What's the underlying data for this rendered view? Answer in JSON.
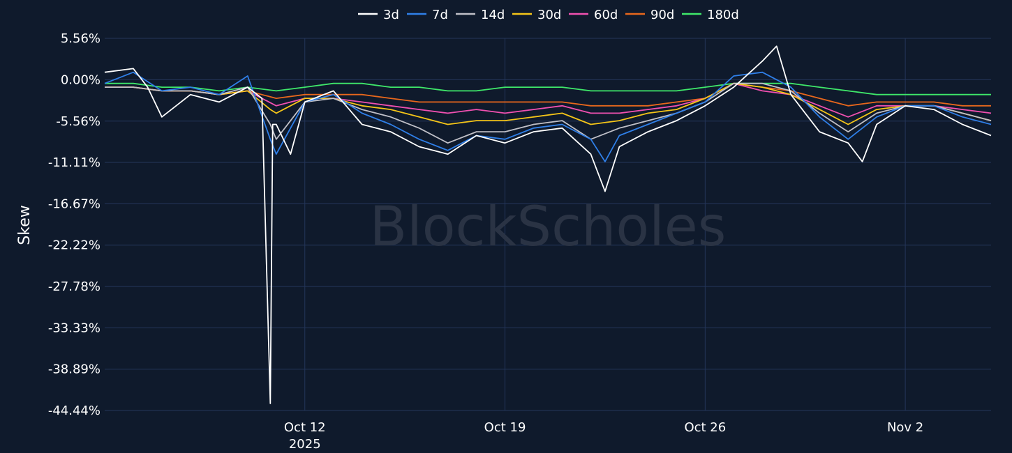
{
  "chart_data": {
    "type": "line",
    "title": "",
    "xlabel": "",
    "ylabel": "Skew",
    "watermark": "BlockScholes",
    "legend_position": "top-center",
    "grid": true,
    "ylim": [
      -44.44,
      5.56
    ],
    "xlim": [
      "2025-10-05",
      "2025-11-05"
    ],
    "y_ticks": [
      5.56,
      0.0,
      -5.56,
      -11.11,
      -16.67,
      -22.22,
      -27.78,
      -33.33,
      -38.89,
      -44.44
    ],
    "y_tick_labels": [
      "5.56%",
      "0.00%",
      "-5.56%",
      "-11.11%",
      "-16.67%",
      "-22.22%",
      "-27.78%",
      "-33.33%",
      "-38.89%",
      "-44.44%"
    ],
    "x_ticks": [
      {
        "date": "2025-10-12",
        "label": "Oct 12",
        "sublabel": "2025"
      },
      {
        "date": "2025-10-19",
        "label": "Oct 19",
        "sublabel": ""
      },
      {
        "date": "2025-10-26",
        "label": "Oct 26",
        "sublabel": ""
      },
      {
        "date": "2025-11-02",
        "label": "Nov 2",
        "sublabel": ""
      }
    ],
    "series": [
      {
        "name": "3d",
        "color": "#ffffff",
        "x": [
          "2025-10-05",
          "2025-10-06",
          "2025-10-06T12:00",
          "2025-10-07",
          "2025-10-08",
          "2025-10-09",
          "2025-10-10",
          "2025-10-10T12:00",
          "2025-10-10T19:00",
          "2025-10-10T21:00",
          "2025-10-11",
          "2025-10-11T12:00",
          "2025-10-12",
          "2025-10-13",
          "2025-10-14",
          "2025-10-15",
          "2025-10-16",
          "2025-10-17",
          "2025-10-18",
          "2025-10-19",
          "2025-10-20",
          "2025-10-21",
          "2025-10-22",
          "2025-10-22T12:00",
          "2025-10-23",
          "2025-10-24",
          "2025-10-25",
          "2025-10-26",
          "2025-10-27",
          "2025-10-28",
          "2025-10-28T12:00",
          "2025-10-29",
          "2025-10-30",
          "2025-10-31",
          "2025-10-31T12:00",
          "2025-11-01",
          "2025-11-02",
          "2025-11-03",
          "2025-11-04",
          "2025-11-05"
        ],
        "y": [
          1.0,
          1.5,
          -1.0,
          -5.0,
          -2.0,
          -3.0,
          -1.0,
          -2.5,
          -43.5,
          -6.0,
          -6.0,
          -10.0,
          -3.0,
          -1.5,
          -6.0,
          -7.0,
          -9.0,
          -10.0,
          -7.5,
          -8.5,
          -7.0,
          -6.5,
          -10.0,
          -15.0,
          -9.0,
          -7.0,
          -5.5,
          -3.5,
          -1.0,
          2.5,
          4.5,
          -2.0,
          -7.0,
          -8.5,
          -11.0,
          -6.0,
          -3.5,
          -4.0,
          -6.0,
          -7.5
        ]
      },
      {
        "name": "7d",
        "color": "#2f7fe8",
        "x": [
          "2025-10-05",
          "2025-10-06",
          "2025-10-07",
          "2025-10-08",
          "2025-10-09",
          "2025-10-10",
          "2025-10-10T19:00",
          "2025-10-11",
          "2025-10-12",
          "2025-10-13",
          "2025-10-14",
          "2025-10-15",
          "2025-10-16",
          "2025-10-17",
          "2025-10-18",
          "2025-10-19",
          "2025-10-20",
          "2025-10-21",
          "2025-10-22",
          "2025-10-22T12:00",
          "2025-10-23",
          "2025-10-24",
          "2025-10-25",
          "2025-10-26",
          "2025-10-27",
          "2025-10-28",
          "2025-10-29",
          "2025-10-30",
          "2025-10-31",
          "2025-11-01",
          "2025-11-02",
          "2025-11-03",
          "2025-11-04",
          "2025-11-05"
        ],
        "y": [
          -0.5,
          1.0,
          -1.5,
          -1.0,
          -2.0,
          0.5,
          -8.0,
          -10.0,
          -3.0,
          -2.0,
          -4.5,
          -6.0,
          -8.0,
          -9.5,
          -7.5,
          -8.0,
          -6.5,
          -6.0,
          -8.0,
          -11.0,
          -7.5,
          -6.0,
          -4.5,
          -3.0,
          0.5,
          1.0,
          -1.0,
          -5.0,
          -8.0,
          -5.0,
          -3.5,
          -3.5,
          -5.0,
          -6.0
        ]
      },
      {
        "name": "14d",
        "color": "#c0c0c8",
        "x": [
          "2025-10-05",
          "2025-10-06",
          "2025-10-07",
          "2025-10-08",
          "2025-10-09",
          "2025-10-10",
          "2025-10-10T19:00",
          "2025-10-11",
          "2025-10-12",
          "2025-10-13",
          "2025-10-14",
          "2025-10-15",
          "2025-10-16",
          "2025-10-17",
          "2025-10-18",
          "2025-10-19",
          "2025-10-20",
          "2025-10-21",
          "2025-10-22",
          "2025-10-23",
          "2025-10-24",
          "2025-10-25",
          "2025-10-26",
          "2025-10-27",
          "2025-10-28",
          "2025-10-29",
          "2025-10-30",
          "2025-10-31",
          "2025-11-01",
          "2025-11-02",
          "2025-11-03",
          "2025-11-04",
          "2025-11-05"
        ],
        "y": [
          -1.0,
          -1.0,
          -1.5,
          -1.5,
          -2.0,
          -1.0,
          -6.0,
          -8.0,
          -3.0,
          -2.5,
          -4.0,
          -5.0,
          -6.5,
          -8.5,
          -7.0,
          -7.0,
          -6.0,
          -5.5,
          -8.0,
          -6.5,
          -5.5,
          -4.5,
          -3.0,
          -0.5,
          -0.5,
          -1.5,
          -4.5,
          -7.0,
          -4.5,
          -3.5,
          -3.5,
          -4.5,
          -5.5
        ]
      },
      {
        "name": "30d",
        "color": "#f5c518",
        "x": [
          "2025-10-05",
          "2025-10-06",
          "2025-10-07",
          "2025-10-08",
          "2025-10-09",
          "2025-10-10",
          "2025-10-10T19:00",
          "2025-10-11",
          "2025-10-12",
          "2025-10-13",
          "2025-10-14",
          "2025-10-15",
          "2025-10-16",
          "2025-10-17",
          "2025-10-18",
          "2025-10-19",
          "2025-10-20",
          "2025-10-21",
          "2025-10-22",
          "2025-10-23",
          "2025-10-24",
          "2025-10-25",
          "2025-10-26",
          "2025-10-27",
          "2025-10-28",
          "2025-10-29",
          "2025-10-30",
          "2025-10-31",
          "2025-11-01",
          "2025-11-02",
          "2025-11-03",
          "2025-11-04",
          "2025-11-05"
        ],
        "y": [
          -1.0,
          -1.0,
          -1.5,
          -1.5,
          -2.0,
          -1.5,
          -4.0,
          -4.5,
          -2.5,
          -2.5,
          -3.5,
          -4.0,
          -5.0,
          -6.0,
          -5.5,
          -5.5,
          -5.0,
          -4.5,
          -6.0,
          -5.5,
          -4.5,
          -4.0,
          -2.5,
          -0.5,
          -1.0,
          -2.0,
          -4.0,
          -6.0,
          -4.0,
          -3.5,
          -3.5,
          -4.5,
          -5.5
        ]
      },
      {
        "name": "60d",
        "color": "#f050b0",
        "x": [
          "2025-10-05",
          "2025-10-06",
          "2025-10-07",
          "2025-10-08",
          "2025-10-09",
          "2025-10-10",
          "2025-10-11",
          "2025-10-12",
          "2025-10-13",
          "2025-10-14",
          "2025-10-15",
          "2025-10-16",
          "2025-10-17",
          "2025-10-18",
          "2025-10-19",
          "2025-10-20",
          "2025-10-21",
          "2025-10-22",
          "2025-10-23",
          "2025-10-24",
          "2025-10-25",
          "2025-10-26",
          "2025-10-27",
          "2025-10-28",
          "2025-10-29",
          "2025-10-30",
          "2025-10-31",
          "2025-11-01",
          "2025-11-02",
          "2025-11-03",
          "2025-11-04",
          "2025-11-05"
        ],
        "y": [
          -1.0,
          -1.0,
          -1.5,
          -1.5,
          -2.0,
          -1.5,
          -3.5,
          -2.5,
          -2.5,
          -3.0,
          -3.5,
          -4.0,
          -4.5,
          -4.0,
          -4.5,
          -4.0,
          -3.5,
          -4.5,
          -4.5,
          -4.0,
          -3.5,
          -2.5,
          -0.5,
          -1.5,
          -2.0,
          -3.5,
          -5.0,
          -3.5,
          -3.5,
          -3.5,
          -4.0,
          -4.5
        ]
      },
      {
        "name": "90d",
        "color": "#e8671c",
        "x": [
          "2025-10-05",
          "2025-10-06",
          "2025-10-07",
          "2025-10-08",
          "2025-10-09",
          "2025-10-10",
          "2025-10-11",
          "2025-10-12",
          "2025-10-13",
          "2025-10-14",
          "2025-10-15",
          "2025-10-16",
          "2025-10-17",
          "2025-10-18",
          "2025-10-19",
          "2025-10-20",
          "2025-10-21",
          "2025-10-22",
          "2025-10-23",
          "2025-10-24",
          "2025-10-25",
          "2025-10-26",
          "2025-10-27",
          "2025-10-28",
          "2025-10-29",
          "2025-10-30",
          "2025-10-31",
          "2025-11-01",
          "2025-11-02",
          "2025-11-03",
          "2025-11-04",
          "2025-11-05"
        ],
        "y": [
          -1.0,
          -1.0,
          -1.5,
          -1.5,
          -2.0,
          -1.5,
          -2.5,
          -2.0,
          -2.0,
          -2.0,
          -2.5,
          -3.0,
          -3.0,
          -3.0,
          -3.0,
          -3.0,
          -3.0,
          -3.5,
          -3.5,
          -3.5,
          -3.0,
          -2.5,
          -0.5,
          -1.0,
          -1.5,
          -2.5,
          -3.5,
          -3.0,
          -3.0,
          -3.0,
          -3.5,
          -3.5
        ]
      },
      {
        "name": "180d",
        "color": "#3fe86a",
        "x": [
          "2025-10-05",
          "2025-10-06",
          "2025-10-07",
          "2025-10-08",
          "2025-10-09",
          "2025-10-10",
          "2025-10-11",
          "2025-10-12",
          "2025-10-13",
          "2025-10-14",
          "2025-10-15",
          "2025-10-16",
          "2025-10-17",
          "2025-10-18",
          "2025-10-19",
          "2025-10-20",
          "2025-10-21",
          "2025-10-22",
          "2025-10-23",
          "2025-10-24",
          "2025-10-25",
          "2025-10-26",
          "2025-10-27",
          "2025-10-28",
          "2025-10-29",
          "2025-10-30",
          "2025-10-31",
          "2025-11-01",
          "2025-11-02",
          "2025-11-03",
          "2025-11-04",
          "2025-11-05"
        ],
        "y": [
          -0.5,
          -0.5,
          -1.0,
          -1.0,
          -1.5,
          -1.0,
          -1.5,
          -1.0,
          -0.5,
          -0.5,
          -1.0,
          -1.0,
          -1.5,
          -1.5,
          -1.0,
          -1.0,
          -1.0,
          -1.5,
          -1.5,
          -1.5,
          -1.5,
          -1.0,
          -0.5,
          -0.5,
          -0.5,
          -1.0,
          -1.5,
          -2.0,
          -2.0,
          -2.0,
          -2.0,
          -2.0
        ]
      }
    ]
  }
}
